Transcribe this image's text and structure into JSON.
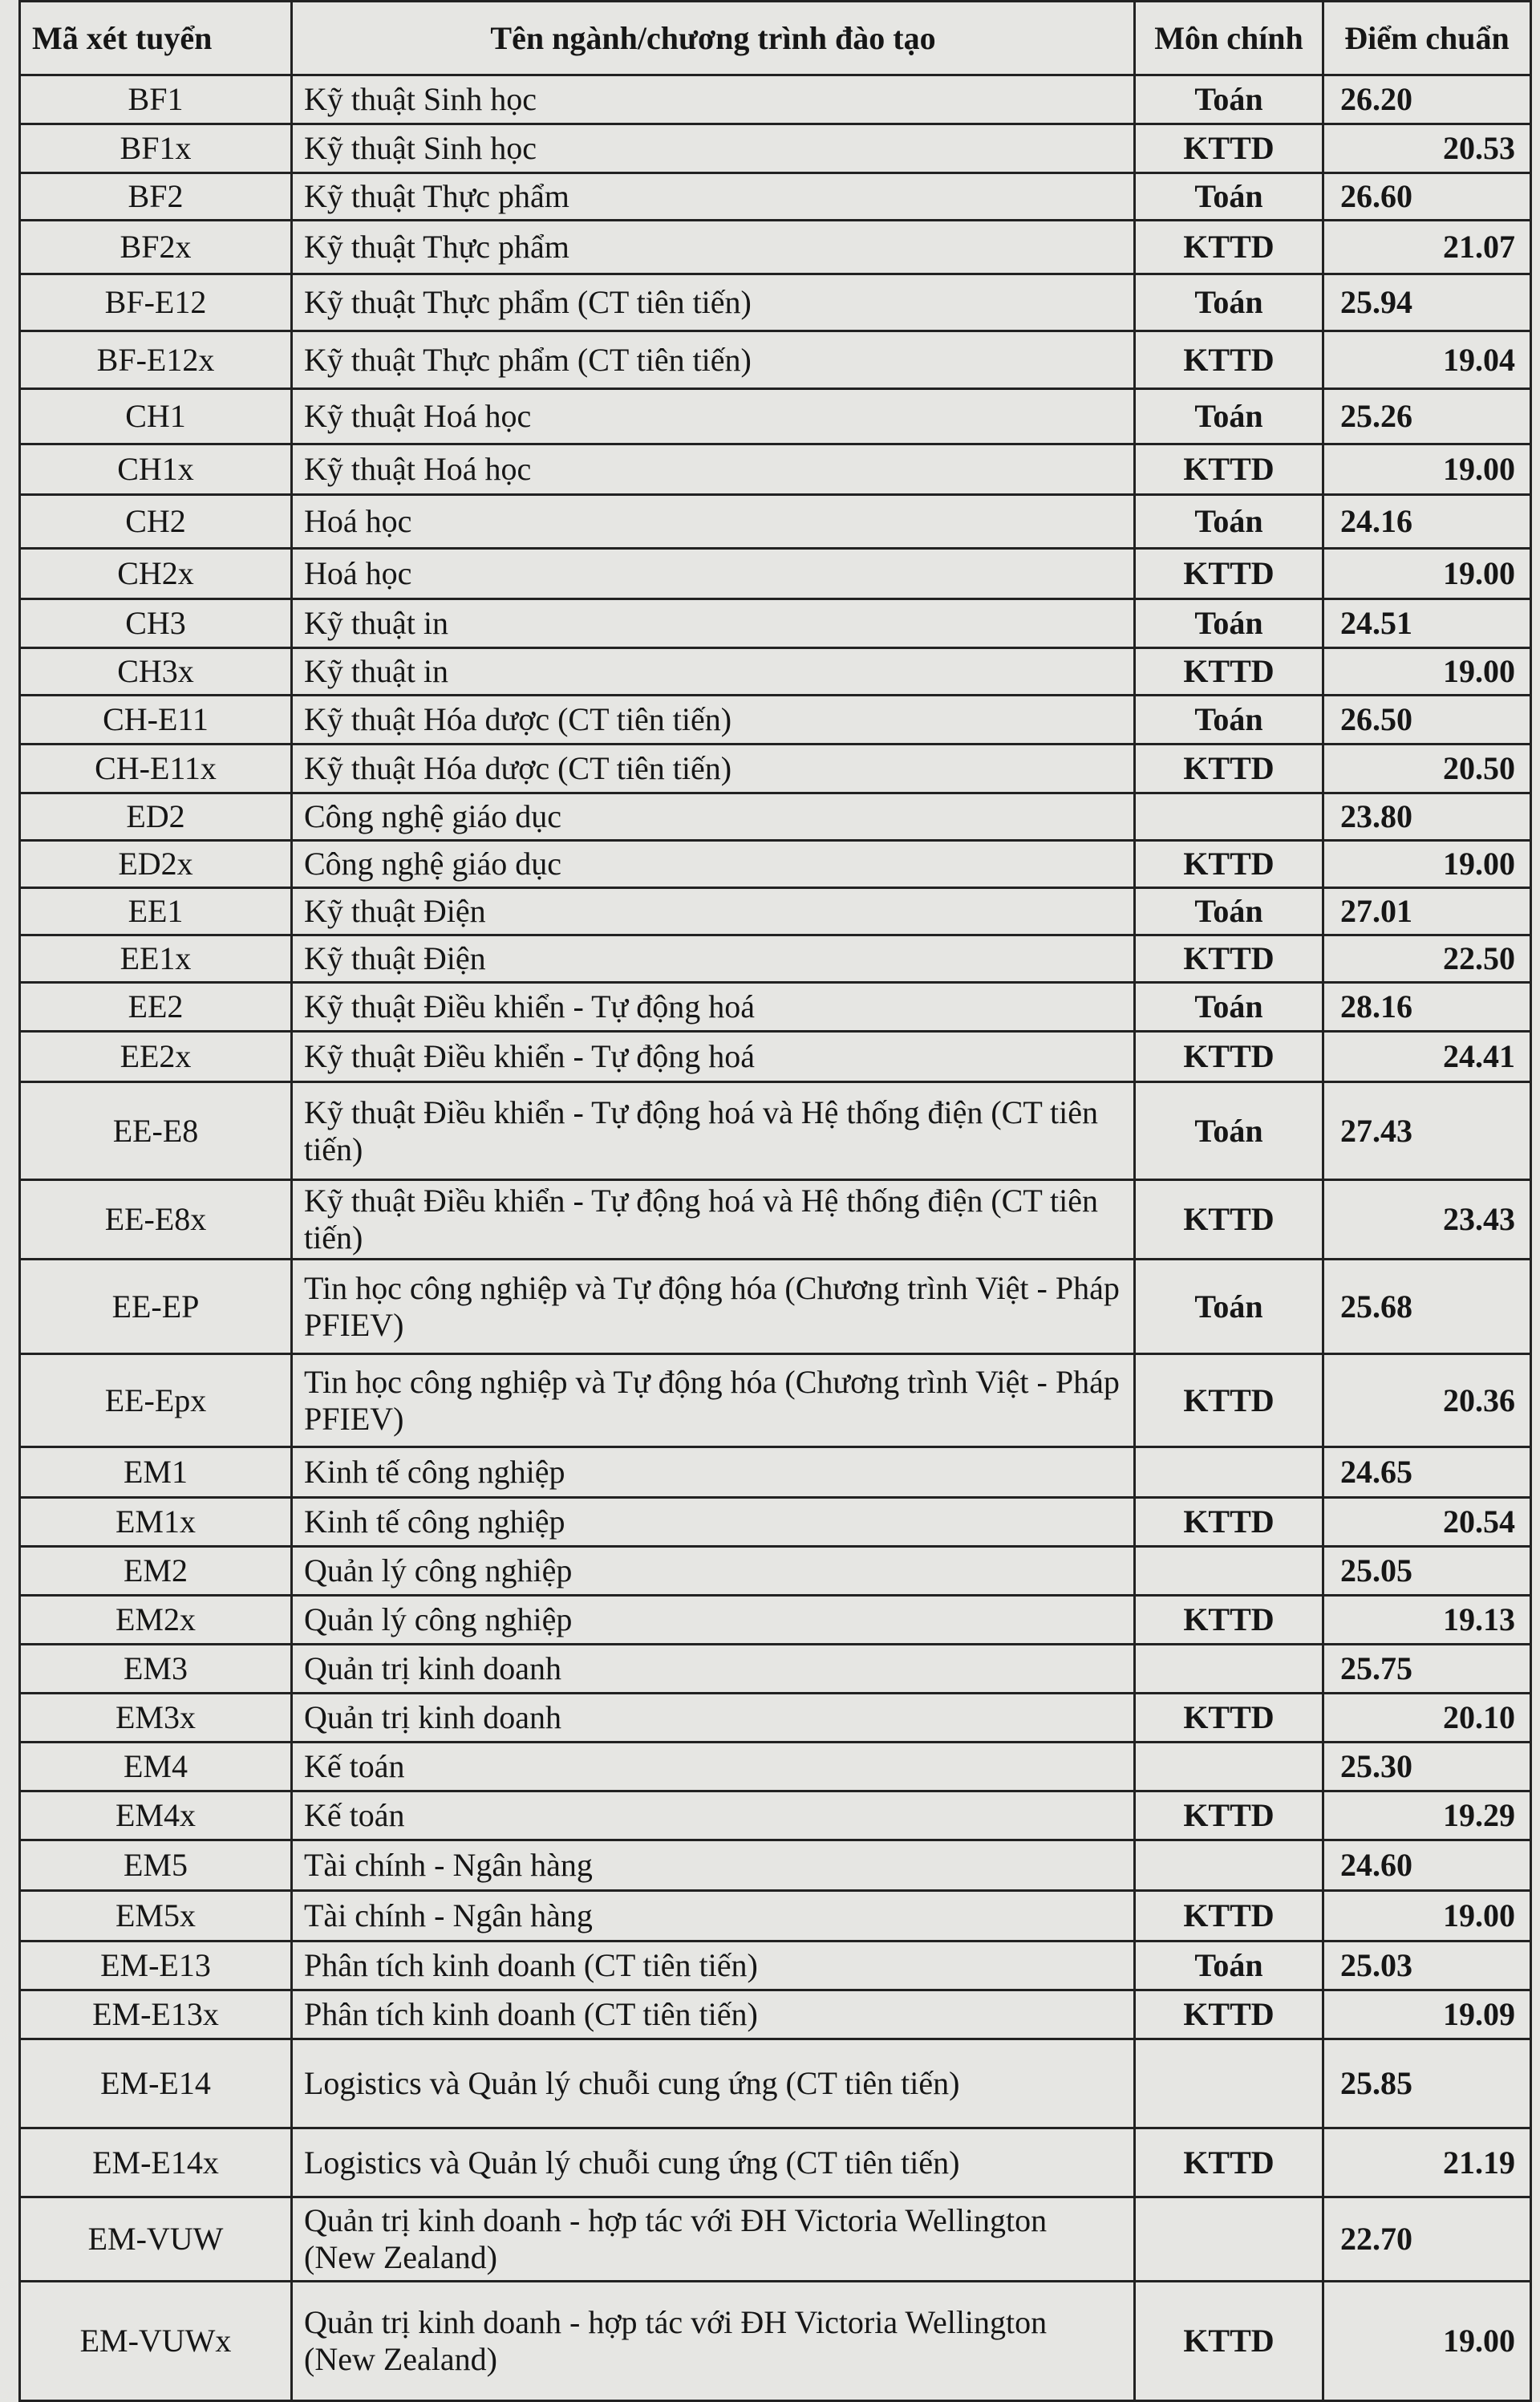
{
  "headers": {
    "code": "Mã xét tuyển",
    "name": "Tên ngành/chương trình đào tạo",
    "subject": "Môn chính",
    "score": "Điểm chuẩn"
  },
  "rows": [
    {
      "code": "BF1",
      "name": "Kỹ thuật Sinh học",
      "subject": "Toán",
      "score": "26.20"
    },
    {
      "code": "BF1x",
      "name": "Kỹ thuật Sinh học",
      "subject": "KTTD",
      "score": "20.53"
    },
    {
      "code": "BF2",
      "name": "Kỹ thuật Thực phẩm",
      "subject": "Toán",
      "score": "26.60"
    },
    {
      "code": "BF2x",
      "name": "Kỹ thuật Thực phẩm",
      "subject": "KTTD",
      "score": "21.07"
    },
    {
      "code": "BF-E12",
      "name": "Kỹ thuật Thực phẩm (CT tiên tiến)",
      "subject": "Toán",
      "score": "25.94"
    },
    {
      "code": "BF-E12x",
      "name": "Kỹ thuật Thực phẩm (CT tiên tiến)",
      "subject": "KTTD",
      "score": "19.04"
    },
    {
      "code": "CH1",
      "name": "Kỹ thuật Hoá học",
      "subject": "Toán",
      "score": "25.26"
    },
    {
      "code": "CH1x",
      "name": "Kỹ thuật Hoá học",
      "subject": "KTTD",
      "score": "19.00"
    },
    {
      "code": "CH2",
      "name": "Hoá học",
      "subject": "Toán",
      "score": "24.16"
    },
    {
      "code": "CH2x",
      "name": "Hoá học",
      "subject": "KTTD",
      "score": "19.00"
    },
    {
      "code": "CH3",
      "name": "Kỹ thuật in",
      "subject": "Toán",
      "score": "24.51"
    },
    {
      "code": "CH3x",
      "name": "Kỹ thuật in",
      "subject": "KTTD",
      "score": "19.00"
    },
    {
      "code": "CH-E11",
      "name": "Kỹ thuật Hóa dược (CT tiên tiến)",
      "subject": "Toán",
      "score": "26.50"
    },
    {
      "code": "CH-E11x",
      "name": "Kỹ thuật Hóa dược (CT tiên tiến)",
      "subject": "KTTD",
      "score": "20.50"
    },
    {
      "code": "ED2",
      "name": "Công nghệ giáo dục",
      "subject": "",
      "score": "23.80"
    },
    {
      "code": "ED2x",
      "name": "Công nghệ giáo dục",
      "subject": "KTTD",
      "score": "19.00"
    },
    {
      "code": "EE1",
      "name": "Kỹ thuật Điện",
      "subject": "Toán",
      "score": "27.01"
    },
    {
      "code": "EE1x",
      "name": "Kỹ thuật Điện",
      "subject": "KTTD",
      "score": "22.50"
    },
    {
      "code": "EE2",
      "name": "Kỹ thuật Điều khiển - Tự động hoá",
      "subject": "Toán",
      "score": "28.16"
    },
    {
      "code": "EE2x",
      "name": "Kỹ thuật Điều khiển - Tự động hoá",
      "subject": "KTTD",
      "score": "24.41"
    },
    {
      "code": "EE-E8",
      "name": "Kỹ thuật Điều khiển - Tự động hoá và Hệ thống điện (CT tiên tiến)",
      "subject": "Toán",
      "score": "27.43"
    },
    {
      "code": "EE-E8x",
      "name": "Kỹ thuật Điều khiển - Tự động hoá và Hệ thống điện (CT tiên tiến)",
      "subject": "KTTD",
      "score": "23.43"
    },
    {
      "code": "EE-EP",
      "name": "Tin học công nghiệp và Tự động hóa (Chương trình Việt - Pháp PFIEV)",
      "subject": "Toán",
      "score": "25.68"
    },
    {
      "code": "EE-Epx",
      "name": "Tin học công nghiệp và Tự động hóa (Chương trình Việt - Pháp PFIEV)",
      "subject": "KTTD",
      "score": "20.36"
    },
    {
      "code": "EM1",
      "name": "Kinh tế công nghiệp",
      "subject": "",
      "score": "24.65"
    },
    {
      "code": "EM1x",
      "name": "Kinh tế công nghiệp",
      "subject": "KTTD",
      "score": "20.54"
    },
    {
      "code": "EM2",
      "name": "Quản lý công nghiệp",
      "subject": "",
      "score": "25.05"
    },
    {
      "code": "EM2x",
      "name": "Quản lý công nghiệp",
      "subject": "KTTD",
      "score": "19.13"
    },
    {
      "code": "EM3",
      "name": "Quản trị kinh doanh",
      "subject": "",
      "score": "25.75"
    },
    {
      "code": "EM3x",
      "name": "Quản trị kinh doanh",
      "subject": "KTTD",
      "score": "20.10"
    },
    {
      "code": "EM4",
      "name": "Kế toán",
      "subject": "",
      "score": "25.30"
    },
    {
      "code": "EM4x",
      "name": "Kế toán",
      "subject": "KTTD",
      "score": "19.29"
    },
    {
      "code": "EM5",
      "name": "Tài chính - Ngân hàng",
      "subject": "",
      "score": "24.60"
    },
    {
      "code": "EM5x",
      "name": "Tài chính - Ngân hàng",
      "subject": "KTTD",
      "score": "19.00"
    },
    {
      "code": "EM-E13",
      "name": "Phân tích kinh doanh (CT tiên tiến)",
      "subject": "Toán",
      "score": "25.03"
    },
    {
      "code": "EM-E13x",
      "name": "Phân tích kinh doanh (CT tiên tiến)",
      "subject": "KTTD",
      "score": "19.09"
    },
    {
      "code": "EM-E14",
      "name": "Logistics và Quản lý chuỗi cung ứng (CT tiên tiến)",
      "subject": "",
      "score": "25.85"
    },
    {
      "code": "EM-E14x",
      "name": "Logistics và Quản lý chuỗi cung ứng (CT tiên tiến)",
      "subject": "KTTD",
      "score": "21.19"
    },
    {
      "code": "EM-VUW",
      "name": "Quản trị kinh doanh - hợp tác với ĐH Victoria Wellington (New Zealand)",
      "subject": "",
      "score": "22.70"
    },
    {
      "code": "EM-VUWx",
      "name": "Quản trị kinh doanh - hợp tác với ĐH Victoria Wellington (New Zealand)",
      "subject": "KTTD",
      "score": "19.00"
    }
  ]
}
